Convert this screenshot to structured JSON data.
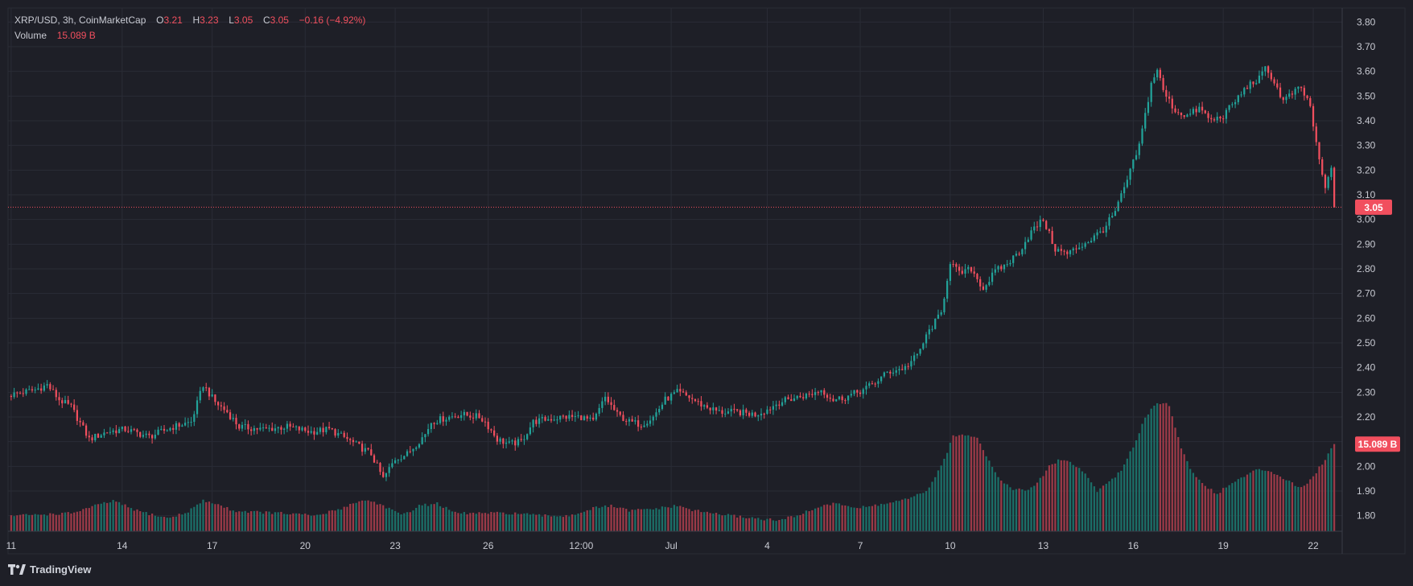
{
  "header": {
    "symbol": "XRP/USD, 3h, CoinMarketCap",
    "open_label": "O",
    "open": "3.21",
    "high_label": "H",
    "high": "3.23",
    "low_label": "L",
    "low": "3.05",
    "close_label": "C",
    "close": "3.05",
    "change": "−0.16 (−4.92%)",
    "volume_label": "Volume",
    "volume": "15.089 B"
  },
  "brand": {
    "name": "TradingView",
    "icon": "tradingview-logo-icon"
  },
  "colors": {
    "background": "#1e1f27",
    "grid": "#2a2c36",
    "up": "#22a39a",
    "down": "#f14f5e",
    "text": "#c8cad2",
    "up_volume": "#1b6f68",
    "down_volume": "#9c3a48"
  },
  "chart_data": {
    "type": "candlestick",
    "title": "XRP/USD, 3h, CoinMarketCap",
    "ylim": [
      1.75,
      3.85
    ],
    "y_ticks": [
      "3.80",
      "3.70",
      "3.60",
      "3.50",
      "3.40",
      "3.30",
      "3.20",
      "3.10",
      "3.00",
      "2.90",
      "2.80",
      "2.70",
      "2.60",
      "2.50",
      "2.40",
      "2.30",
      "2.20",
      "2.10",
      "2.00",
      "1.90",
      "1.80"
    ],
    "x_ticks": [
      "11",
      "14",
      "17",
      "20",
      "23",
      "26",
      "12:00",
      "Jul",
      "4",
      "7",
      "10",
      "13",
      "16",
      "19",
      "22"
    ],
    "last_price_label": "3.05",
    "last_volume_label": "15.089 B",
    "close_path": [
      [
        0,
        2.29
      ],
      [
        8,
        2.31
      ],
      [
        12,
        2.33
      ],
      [
        16,
        2.27
      ],
      [
        20,
        2.24
      ],
      [
        26,
        2.11
      ],
      [
        32,
        2.14
      ],
      [
        38,
        2.15
      ],
      [
        46,
        2.12
      ],
      [
        54,
        2.16
      ],
      [
        60,
        2.18
      ],
      [
        64,
        2.33
      ],
      [
        68,
        2.26
      ],
      [
        72,
        2.22
      ],
      [
        76,
        2.16
      ],
      [
        84,
        2.15
      ],
      [
        92,
        2.16
      ],
      [
        100,
        2.14
      ],
      [
        106,
        2.15
      ],
      [
        112,
        2.11
      ],
      [
        116,
        2.08
      ],
      [
        120,
        2.05
      ],
      [
        124,
        1.95
      ],
      [
        128,
        2.03
      ],
      [
        132,
        2.05
      ],
      [
        138,
        2.13
      ],
      [
        140,
        2.18
      ],
      [
        146,
        2.2
      ],
      [
        150,
        2.21
      ],
      [
        156,
        2.2
      ],
      [
        158,
        2.18
      ],
      [
        162,
        2.11
      ],
      [
        166,
        2.09
      ],
      [
        170,
        2.1
      ],
      [
        174,
        2.18
      ],
      [
        178,
        2.19
      ],
      [
        184,
        2.2
      ],
      [
        190,
        2.2
      ],
      [
        194,
        2.18
      ],
      [
        198,
        2.28
      ],
      [
        202,
        2.21
      ],
      [
        206,
        2.18
      ],
      [
        210,
        2.17
      ],
      [
        214,
        2.2
      ],
      [
        218,
        2.27
      ],
      [
        222,
        2.3
      ],
      [
        226,
        2.28
      ],
      [
        230,
        2.25
      ],
      [
        236,
        2.22
      ],
      [
        242,
        2.22
      ],
      [
        248,
        2.21
      ],
      [
        252,
        2.23
      ],
      [
        256,
        2.26
      ],
      [
        262,
        2.28
      ],
      [
        266,
        2.29
      ],
      [
        270,
        2.31
      ],
      [
        274,
        2.27
      ],
      [
        278,
        2.28
      ],
      [
        284,
        2.31
      ],
      [
        288,
        2.34
      ],
      [
        292,
        2.38
      ],
      [
        298,
        2.4
      ],
      [
        302,
        2.45
      ],
      [
        306,
        2.55
      ],
      [
        310,
        2.62
      ],
      [
        313,
        2.83
      ],
      [
        316,
        2.78
      ],
      [
        320,
        2.8
      ],
      [
        324,
        2.72
      ],
      [
        328,
        2.79
      ],
      [
        332,
        2.82
      ],
      [
        336,
        2.87
      ],
      [
        340,
        2.95
      ],
      [
        344,
        3.0
      ],
      [
        348,
        2.88
      ],
      [
        352,
        2.86
      ],
      [
        356,
        2.89
      ],
      [
        360,
        2.92
      ],
      [
        364,
        2.96
      ],
      [
        368,
        3.03
      ],
      [
        372,
        3.16
      ],
      [
        376,
        3.3
      ],
      [
        380,
        3.55
      ],
      [
        382,
        3.61
      ],
      [
        384,
        3.52
      ],
      [
        388,
        3.44
      ],
      [
        392,
        3.42
      ],
      [
        396,
        3.45
      ],
      [
        400,
        3.4
      ],
      [
        404,
        3.42
      ],
      [
        408,
        3.48
      ],
      [
        412,
        3.54
      ],
      [
        416,
        3.57
      ],
      [
        418,
        3.61
      ],
      [
        420,
        3.58
      ],
      [
        424,
        3.48
      ],
      [
        428,
        3.52
      ],
      [
        430,
        3.53
      ],
      [
        433,
        3.46
      ],
      [
        435,
        3.3
      ],
      [
        438,
        3.12
      ],
      [
        440,
        3.21
      ],
      [
        441,
        3.05
      ]
    ],
    "volume_path": [
      [
        0,
        1.8
      ],
      [
        20,
        1.81
      ],
      [
        28,
        1.84
      ],
      [
        34,
        1.86
      ],
      [
        42,
        1.82
      ],
      [
        52,
        1.79
      ],
      [
        58,
        1.81
      ],
      [
        64,
        1.86
      ],
      [
        68,
        1.85
      ],
      [
        74,
        1.82
      ],
      [
        90,
        1.81
      ],
      [
        102,
        1.8
      ],
      [
        110,
        1.83
      ],
      [
        116,
        1.86
      ],
      [
        120,
        1.86
      ],
      [
        126,
        1.83
      ],
      [
        130,
        1.8
      ],
      [
        136,
        1.84
      ],
      [
        142,
        1.85
      ],
      [
        148,
        1.81
      ],
      [
        160,
        1.81
      ],
      [
        168,
        1.81
      ],
      [
        176,
        1.8
      ],
      [
        186,
        1.8
      ],
      [
        194,
        1.83
      ],
      [
        200,
        1.84
      ],
      [
        206,
        1.82
      ],
      [
        216,
        1.83
      ],
      [
        222,
        1.84
      ],
      [
        228,
        1.82
      ],
      [
        240,
        1.8
      ],
      [
        256,
        1.78
      ],
      [
        264,
        1.81
      ],
      [
        270,
        1.84
      ],
      [
        276,
        1.85
      ],
      [
        282,
        1.83
      ],
      [
        292,
        1.85
      ],
      [
        300,
        1.87
      ],
      [
        306,
        1.91
      ],
      [
        310,
        2.0
      ],
      [
        314,
        2.12
      ],
      [
        318,
        2.13
      ],
      [
        322,
        2.12
      ],
      [
        326,
        2.02
      ],
      [
        330,
        1.94
      ],
      [
        334,
        1.91
      ],
      [
        338,
        1.9
      ],
      [
        342,
        1.93
      ],
      [
        346,
        2.0
      ],
      [
        350,
        2.03
      ],
      [
        354,
        2.01
      ],
      [
        358,
        1.97
      ],
      [
        362,
        1.9
      ],
      [
        366,
        1.94
      ],
      [
        370,
        1.98
      ],
      [
        374,
        2.08
      ],
      [
        378,
        2.2
      ],
      [
        382,
        2.26
      ],
      [
        386,
        2.25
      ],
      [
        390,
        2.07
      ],
      [
        394,
        1.97
      ],
      [
        398,
        1.92
      ],
      [
        402,
        1.89
      ],
      [
        408,
        1.94
      ],
      [
        416,
        1.99
      ],
      [
        420,
        1.98
      ],
      [
        426,
        1.94
      ],
      [
        430,
        1.91
      ],
      [
        434,
        1.96
      ],
      [
        438,
        2.03
      ],
      [
        441,
        2.09
      ]
    ]
  }
}
